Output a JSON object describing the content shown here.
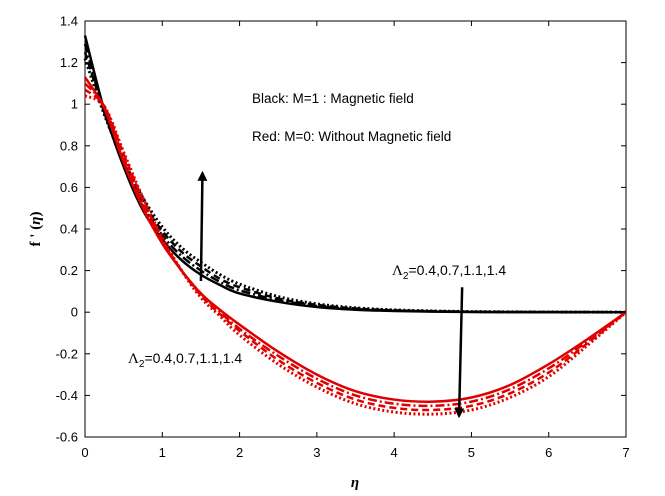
{
  "chart_data": {
    "type": "line",
    "title": "",
    "xlabel": "η",
    "ylabel_parts": {
      "main": "f ' (",
      "var": "η",
      "close": ")"
    },
    "xlim": [
      0,
      7
    ],
    "ylim": [
      -0.6,
      1.4
    ],
    "xticks": [
      0,
      1,
      2,
      3,
      4,
      5,
      6,
      7
    ],
    "yticks": [
      -0.6,
      -0.4,
      -0.2,
      0,
      0.2,
      0.4,
      0.6,
      0.8,
      1,
      1.2,
      1.4
    ],
    "grid": false,
    "x": [
      0,
      0.25,
      0.5,
      0.75,
      1,
      1.25,
      1.5,
      1.75,
      2,
      2.5,
      3,
      3.5,
      4,
      4.5,
      5,
      5.5,
      6,
      6.5,
      7
    ],
    "series": [
      {
        "name": "M=1, Λ2=0.4",
        "color": "#000000",
        "style": "solid",
        "values": [
          1.33,
          0.97,
          0.7,
          0.49,
          0.35,
          0.25,
          0.18,
          0.13,
          0.09,
          0.05,
          0.025,
          0.012,
          0.006,
          0.003,
          0.001,
          0.0005,
          0.0002,
          0.0001,
          0
        ]
      },
      {
        "name": "M=1, Λ2=0.7",
        "color": "#000000",
        "style": "dashdot",
        "values": [
          1.29,
          0.96,
          0.71,
          0.51,
          0.37,
          0.27,
          0.2,
          0.145,
          0.105,
          0.058,
          0.03,
          0.015,
          0.008,
          0.004,
          0.002,
          0.001,
          0.0005,
          0.0002,
          0
        ]
      },
      {
        "name": "M=1, Λ2=1.1",
        "color": "#000000",
        "style": "dashed",
        "values": [
          1.25,
          0.96,
          0.72,
          0.53,
          0.39,
          0.29,
          0.22,
          0.16,
          0.12,
          0.066,
          0.035,
          0.018,
          0.009,
          0.005,
          0.0025,
          0.0012,
          0.0006,
          0.0003,
          0
        ]
      },
      {
        "name": "M=1, Λ2=1.4",
        "color": "#000000",
        "style": "dotted",
        "values": [
          1.22,
          0.95,
          0.73,
          0.55,
          0.41,
          0.31,
          0.24,
          0.18,
          0.135,
          0.075,
          0.04,
          0.021,
          0.011,
          0.006,
          0.003,
          0.0015,
          0.0008,
          0.0004,
          0
        ]
      },
      {
        "name": "M=0, Λ2=0.4",
        "color": "#e00000",
        "style": "solid",
        "values": [
          1.13,
          0.98,
          0.72,
          0.5,
          0.33,
          0.2,
          0.09,
          0.01,
          -0.06,
          -0.19,
          -0.3,
          -0.38,
          -0.42,
          -0.43,
          -0.41,
          -0.35,
          -0.25,
          -0.13,
          0
        ]
      },
      {
        "name": "M=0, Λ2=0.7",
        "color": "#e00000",
        "style": "dashdot",
        "values": [
          1.1,
          0.99,
          0.74,
          0.52,
          0.34,
          0.2,
          0.09,
          0.0,
          -0.08,
          -0.21,
          -0.32,
          -0.4,
          -0.44,
          -0.45,
          -0.43,
          -0.37,
          -0.27,
          -0.14,
          0
        ]
      },
      {
        "name": "M=0, Λ2=1.1",
        "color": "#e00000",
        "style": "dashed",
        "values": [
          1.07,
          0.99,
          0.76,
          0.54,
          0.35,
          0.2,
          0.08,
          -0.01,
          -0.09,
          -0.23,
          -0.34,
          -0.42,
          -0.46,
          -0.47,
          -0.45,
          -0.39,
          -0.29,
          -0.15,
          0
        ]
      },
      {
        "name": "M=0, Λ2=1.4",
        "color": "#e00000",
        "style": "dotted",
        "values": [
          1.04,
          0.99,
          0.77,
          0.55,
          0.36,
          0.2,
          0.07,
          -0.02,
          -0.11,
          -0.25,
          -0.36,
          -0.44,
          -0.48,
          -0.49,
          -0.47,
          -0.41,
          -0.31,
          -0.16,
          0
        ]
      }
    ],
    "annotations": {
      "legend_line1": "Black: M=1 :   Magnetic field",
      "legend_line2": "Red:  M=0:   Without Magnetic field",
      "param_symbol": "Λ",
      "param_sub": "2",
      "param_values": "=0.4,0.7,1.1,1.4",
      "arrow_up": {
        "from": [
          1.5,
          0.15
        ],
        "to": [
          1.52,
          0.67
        ]
      },
      "arrow_down": {
        "from": [
          4.88,
          0.12
        ],
        "to": [
          4.84,
          -0.5
        ]
      }
    }
  }
}
